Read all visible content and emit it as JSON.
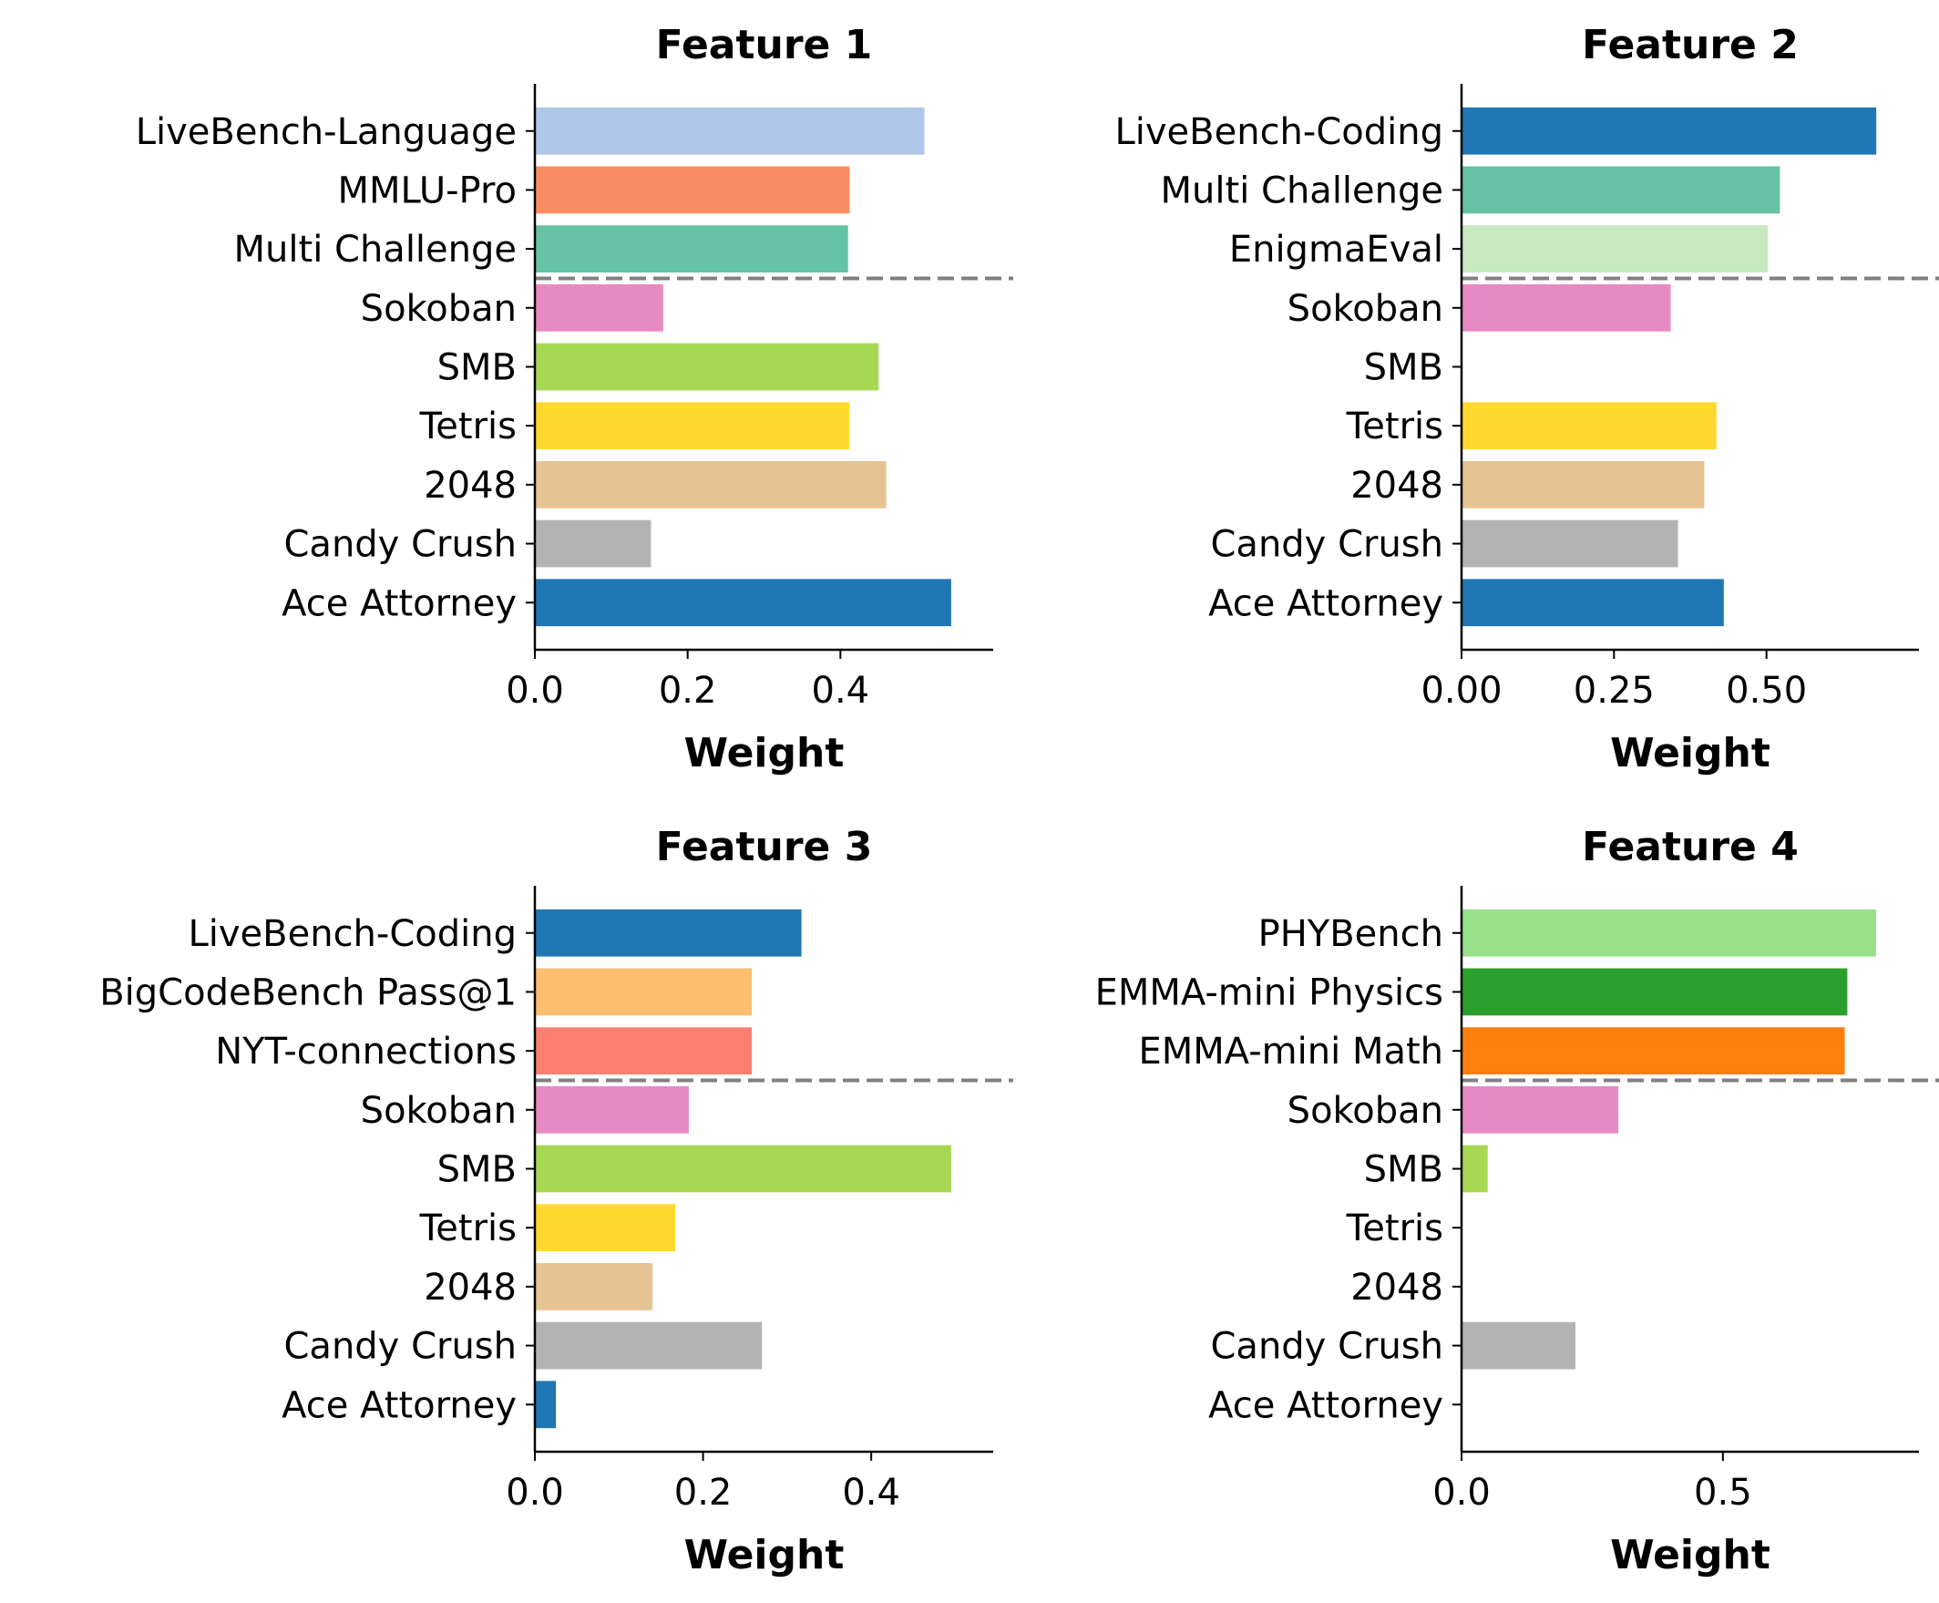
{
  "chart_data": [
    {
      "type": "bar",
      "orientation": "horizontal",
      "title": "Feature 1",
      "xlabel": "Weight",
      "xlim": [
        0,
        0.6
      ],
      "xticks": [
        "0.0",
        "0.2",
        "0.4"
      ],
      "xtick_values": [
        0,
        0.2,
        0.4
      ],
      "grid": false,
      "divider_after_index": 2,
      "categories": [
        "LiveBench-Language",
        "MMLU-Pro",
        "Multi Challenge",
        "Sokoban",
        "SMB",
        "Tetris",
        "2048",
        "Candy Crush",
        "Ace Attorney"
      ],
      "values": [
        0.51,
        0.412,
        0.41,
        0.168,
        0.45,
        0.412,
        0.46,
        0.152,
        0.545
      ],
      "colors": [
        "#aec7e8",
        "#fc8d62",
        "#66c2a5",
        "#e78ac3",
        "#a6d854",
        "#ffd92f",
        "#e5c494",
        "#b3b3b3",
        "#1f77b4"
      ]
    },
    {
      "type": "bar",
      "orientation": "horizontal",
      "title": "Feature 2",
      "xlabel": "Weight",
      "xlim": [
        0,
        0.75
      ],
      "xticks": [
        "0.00",
        "0.25",
        "0.50"
      ],
      "xtick_values": [
        0,
        0.25,
        0.5
      ],
      "grid": false,
      "divider_after_index": 2,
      "categories": [
        "LiveBench-Coding",
        "Multi Challenge",
        "EnigmaEval",
        "Sokoban",
        "SMB",
        "Tetris",
        "2048",
        "Candy Crush",
        "Ace Attorney"
      ],
      "values": [
        0.68,
        0.522,
        0.502,
        0.343,
        0,
        0.418,
        0.398,
        0.355,
        0.43
      ],
      "colors": [
        "#1f77b4",
        "#66c2a5",
        "#c7e9c0",
        "#e78ac3",
        "#a6d854",
        "#ffd92f",
        "#e5c494",
        "#b3b3b3",
        "#1f77b4"
      ]
    },
    {
      "type": "bar",
      "orientation": "horizontal",
      "title": "Feature 3",
      "xlabel": "Weight",
      "xlim": [
        0,
        0.545
      ],
      "xticks": [
        "0.0",
        "0.2",
        "0.4"
      ],
      "xtick_values": [
        0,
        0.2,
        0.4
      ],
      "grid": false,
      "divider_after_index": 2,
      "categories": [
        "LiveBench-Coding",
        "BigCodeBench Pass@1",
        "NYT-connections",
        "Sokoban",
        "SMB",
        "Tetris",
        "2048",
        "Candy Crush",
        "Ace Attorney"
      ],
      "values": [
        0.317,
        0.258,
        0.258,
        0.183,
        0.495,
        0.167,
        0.14,
        0.27,
        0.025
      ],
      "colors": [
        "#1f77b4",
        "#fdbf6f",
        "#fb8072",
        "#e78ac3",
        "#a6d854",
        "#ffd92f",
        "#e5c494",
        "#b3b3b3",
        "#1f77b4"
      ]
    },
    {
      "type": "bar",
      "orientation": "horizontal",
      "title": "Feature 4",
      "xlabel": "Weight",
      "xlim": [
        0,
        0.875
      ],
      "xticks": [
        "0.0",
        "0.5"
      ],
      "xtick_values": [
        0,
        0.5
      ],
      "grid": false,
      "divider_after_index": 2,
      "categories": [
        "PHYBench",
        "EMMA-mini Physics",
        "EMMA-mini Math",
        "Sokoban",
        "SMB",
        "Tetris",
        "2048",
        "Candy Crush",
        "Ace Attorney"
      ],
      "values": [
        0.793,
        0.738,
        0.733,
        0.3,
        0.05,
        0,
        0,
        0.218,
        0
      ],
      "colors": [
        "#98df8a",
        "#2ca02c",
        "#ff7f0e",
        "#e78ac3",
        "#a6d854",
        "#ffd92f",
        "#e5c494",
        "#b3b3b3",
        "#1f77b4"
      ]
    }
  ]
}
